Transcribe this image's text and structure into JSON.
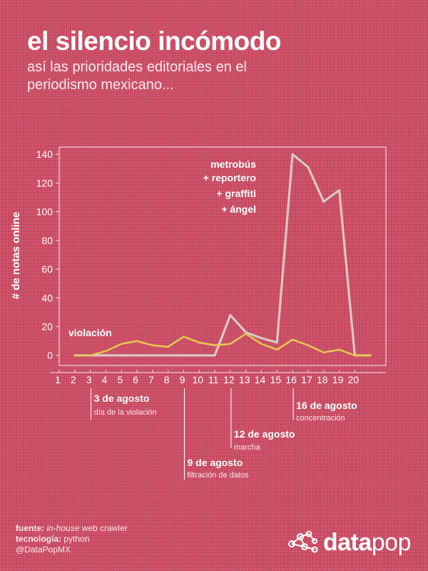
{
  "title": "el silencio incómodo",
  "subtitle": "así las prioridades editoriales en el periodismo mexicano...",
  "colors": {
    "background": "#c9465f",
    "series_violacion": "#e4c552",
    "series_metrobus": "#d9c8c3",
    "axis": "#f3d7dd"
  },
  "chart_data": {
    "type": "line",
    "ylabel": "# de notas online",
    "xlabel": "",
    "x": [
      2,
      3,
      4,
      5,
      6,
      7,
      8,
      9,
      10,
      11,
      12,
      13,
      14,
      15,
      16,
      17,
      18,
      19,
      20,
      21
    ],
    "xticks": [
      1,
      2,
      3,
      4,
      5,
      6,
      7,
      8,
      9,
      10,
      11,
      12,
      13,
      14,
      15,
      16,
      17,
      18,
      19,
      20
    ],
    "xlim": [
      1,
      22
    ],
    "ylim": [
      -7,
      145
    ],
    "yticks": [
      0,
      20,
      40,
      60,
      80,
      100,
      120,
      140
    ],
    "grid": false,
    "series": [
      {
        "name": "violación",
        "color": "#e4c552",
        "values": [
          0,
          0,
          3,
          8,
          10,
          7,
          6,
          13,
          9,
          7,
          8,
          15,
          8,
          4,
          11,
          7,
          2,
          4,
          0,
          0
        ]
      },
      {
        "name": "metrobús + reportero + graffiti + ángel",
        "color": "#d9c8c3",
        "values": [
          0,
          0,
          0,
          0,
          0,
          0,
          0,
          0,
          0,
          0,
          28,
          16,
          12,
          9,
          140,
          131,
          107,
          115,
          0,
          0
        ]
      }
    ],
    "series_labels": {
      "violacion": "violación",
      "metrobus": [
        "metrobús",
        "+ reportero",
        "+ graffiti",
        "+ ángel"
      ]
    },
    "annotations": [
      {
        "x": 3,
        "title": "3 de agosto",
        "subtitle": "día de la violación"
      },
      {
        "x": 9,
        "title": "9 de agosto",
        "subtitle": "filtración de datos"
      },
      {
        "x": 12,
        "title": "12 de agosto",
        "subtitle": "marcha"
      },
      {
        "x": 16,
        "title": "16 de agosto",
        "subtitle": "concentración"
      }
    ]
  },
  "footer": {
    "source_label": "fuente:",
    "source_italic": "in-house",
    "source_text": "web crawler",
    "tech_label": "tecnología:",
    "tech_text": "python",
    "handle": "@DataPopMX"
  },
  "logo": {
    "icon": "network-nodes-icon",
    "bold": "data",
    "light": "pop"
  }
}
